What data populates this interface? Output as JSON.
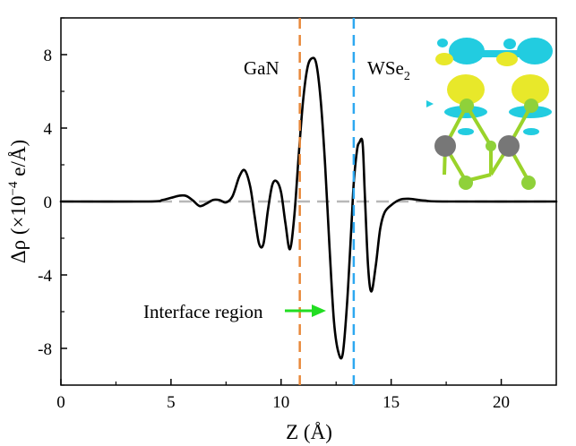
{
  "chart_data": {
    "type": "line",
    "xlabel": "Z (Å)",
    "ylabel_parts": {
      "base": "Δρ (×10",
      "exp": "−4",
      "unit": " e/Å)"
    },
    "xlim": [
      0,
      22.5
    ],
    "ylim": [
      -10,
      10
    ],
    "xticks": [
      0,
      5,
      10,
      15,
      20
    ],
    "yticks": [
      -8,
      -4,
      0,
      4,
      8
    ],
    "xtick_labels": [
      "0",
      "5",
      "10",
      "15",
      "20"
    ],
    "ytick_labels": [
      "-8",
      "-4",
      "0",
      "4",
      "8"
    ],
    "grid": false,
    "series": [
      {
        "color": "#000000",
        "x": [
          0,
          4.0,
          4.6,
          5.0,
          5.4,
          5.7,
          6.0,
          6.3,
          6.6,
          6.9,
          7.2,
          7.5,
          7.8,
          8.1,
          8.35,
          8.6,
          8.8,
          9.0,
          9.2,
          9.4,
          9.6,
          9.8,
          10.0,
          10.2,
          10.4,
          10.6,
          10.8,
          11.0,
          11.2,
          11.4,
          11.6,
          11.8,
          12.0,
          12.2,
          12.4,
          12.6,
          12.8,
          13.0,
          13.2,
          13.3,
          13.45,
          13.55,
          13.7,
          13.8,
          13.95,
          14.1,
          14.3,
          14.5,
          14.7,
          15.0,
          15.4,
          15.8,
          16.5,
          17.5,
          22.5
        ],
        "y": [
          0,
          0,
          0.08,
          0.2,
          0.32,
          0.3,
          0.05,
          -0.25,
          -0.12,
          0.08,
          0.08,
          -0.05,
          0.3,
          1.35,
          1.7,
          0.8,
          -0.8,
          -2.3,
          -2.3,
          -0.5,
          0.9,
          1.1,
          0.5,
          -1.2,
          -2.6,
          -0.8,
          2.5,
          5.5,
          7.3,
          7.8,
          7.5,
          5.5,
          2.0,
          -2.5,
          -6.5,
          -8.2,
          -8.3,
          -5.5,
          -1.2,
          1.0,
          2.8,
          3.2,
          3.2,
          0.5,
          -3.5,
          -4.9,
          -3.5,
          -1.5,
          -0.6,
          -0.2,
          0.1,
          0.15,
          0.05,
          0,
          0
        ]
      }
    ],
    "annotations": {
      "gan_label": "GaN",
      "wse2_label_base": "WSe",
      "wse2_label_sub": "2",
      "interface_label": "Interface region"
    },
    "vlines": [
      {
        "x": 10.85,
        "color": "#e8883a",
        "style": "dashed"
      },
      {
        "x": 13.3,
        "color": "#2ea8f0",
        "style": "dashed"
      }
    ],
    "zero_line": {
      "y": 0,
      "color": "#b8b8b8",
      "style": "dashed"
    },
    "arrow_color": "#22dd22"
  },
  "inset_colors": {
    "yellow": "#e8e82a",
    "cyan": "#22cce0",
    "bond": "#9ad32a",
    "atom_grey": "#777777",
    "atom_green": "#8fd13a"
  }
}
